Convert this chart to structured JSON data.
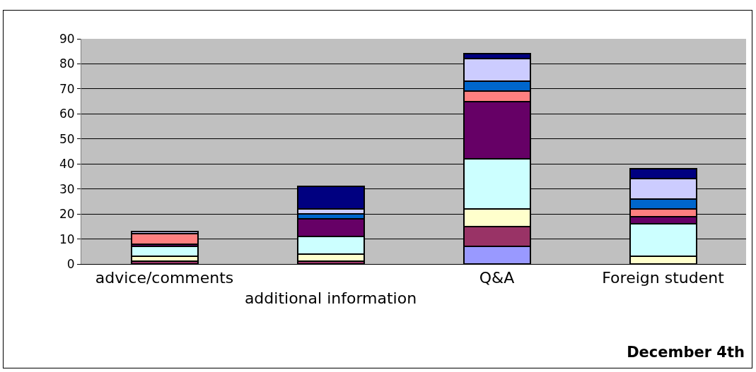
{
  "chart_data": {
    "type": "bar",
    "title": "December 4th",
    "stacked": true,
    "categories": [
      "advice/comments",
      "additional information",
      "Q&A",
      "Foreign student"
    ],
    "series": [
      {
        "color": "#9999ff",
        "values": [
          0,
          0,
          7,
          0
        ]
      },
      {
        "color": "#993366",
        "values": [
          1,
          1,
          8,
          0
        ]
      },
      {
        "color": "#ffffcc",
        "values": [
          2,
          3,
          7,
          3
        ]
      },
      {
        "color": "#ccffff",
        "values": [
          4,
          7,
          20,
          13
        ]
      },
      {
        "color": "#660066",
        "values": [
          1,
          7,
          23,
          3
        ]
      },
      {
        "color": "#ff8080",
        "values": [
          4,
          0,
          4,
          3
        ]
      },
      {
        "color": "#0066cc",
        "values": [
          0,
          2,
          4,
          4
        ]
      },
      {
        "color": "#ccccff",
        "values": [
          1,
          2,
          9,
          8
        ]
      },
      {
        "color": "#000080",
        "values": [
          0,
          9,
          2,
          4
        ]
      }
    ],
    "ylim": [
      0,
      90
    ],
    "yticks": [
      0,
      10,
      20,
      30,
      40,
      50,
      60,
      70,
      80,
      90
    ],
    "grid": "y"
  }
}
